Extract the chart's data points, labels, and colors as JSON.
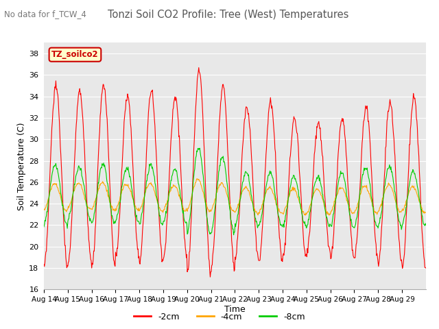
{
  "title": "Tonzi Soil CO2 Profile: Tree (West) Temperatures",
  "subtitle": "No data for f_TCW_4",
  "ylabel": "Soil Temperature (C)",
  "xlabel": "Time",
  "legend_label": "TZ_soilco2",
  "ylim": [
    16,
    39
  ],
  "yticks": [
    16,
    18,
    20,
    22,
    24,
    26,
    28,
    30,
    32,
    34,
    36,
    38
  ],
  "x_labels": [
    "Aug 14",
    "Aug 15",
    "Aug 16",
    "Aug 17",
    "Aug 18",
    "Aug 19",
    "Aug 20",
    "Aug 21",
    "Aug 22",
    "Aug 23",
    "Aug 24",
    "Aug 25",
    "Aug 26",
    "Aug 27",
    "Aug 28",
    "Aug 29"
  ],
  "bg_color": "#e8e8e8",
  "line_2cm_color": "#ff0000",
  "line_4cm_color": "#ffa500",
  "line_8cm_color": "#00cc00",
  "series_labels": [
    "-2cm",
    "-4cm",
    "-8cm"
  ],
  "n_days": 16,
  "points_per_day": 48
}
